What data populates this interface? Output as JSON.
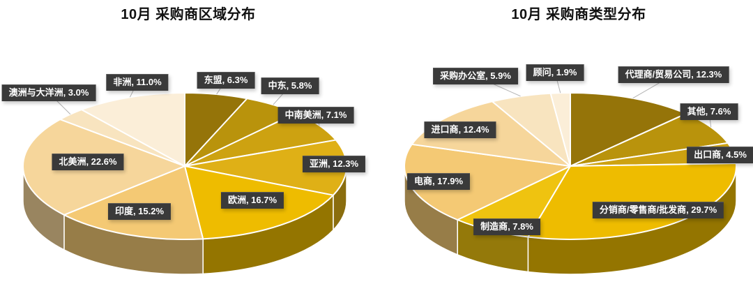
{
  "charts_header": {
    "left_title": "10月 采购商区域分布",
    "right_title": "10月 采购商类型分布"
  },
  "chart_data": [
    {
      "type": "pie",
      "title": "10月 采购商区域分布",
      "style": "3d-pie",
      "start_angle_deg": -90,
      "direction": "clockwise",
      "label_format": "{category}, {value}%",
      "categories": [
        "东盟",
        "中东",
        "中南美洲",
        "亚洲",
        "欧洲",
        "印度",
        "北美洲",
        "澳洲与大洋洲",
        "非洲"
      ],
      "values": [
        6.3,
        5.8,
        7.1,
        12.3,
        16.7,
        15.2,
        22.6,
        3.0,
        11.0
      ],
      "palette": [
        "#957409",
        "#B9930C",
        "#CDA211",
        "#DFB016",
        "#EEBC00",
        "#F4C974",
        "#F6D69B",
        "#F8E4BF",
        "#FBEED8"
      ]
    },
    {
      "type": "pie",
      "title": "10月 采购商类型分布",
      "style": "3d-pie",
      "start_angle_deg": -90,
      "direction": "clockwise",
      "label_format": "{category}, {value}%",
      "categories": [
        "代理商/贸易公司",
        "其他",
        "出口商",
        "分销商/零售商/批发商",
        "制造商",
        "电商",
        "进口商",
        "采购办公室",
        "顾问"
      ],
      "values": [
        12.3,
        7.6,
        4.5,
        29.7,
        7.8,
        17.9,
        12.4,
        5.9,
        1.9
      ],
      "palette": [
        "#957409",
        "#B9930C",
        "#CDA211",
        "#EEBC00",
        "#EFC310",
        "#F4C974",
        "#F6D69B",
        "#F8E4BF",
        "#FBEED8"
      ]
    }
  ],
  "style_colors": {
    "label_box_bg": "#3a3a3a",
    "label_text": "#ffffff",
    "leader_line": "#b3b3b3",
    "slice_separator": "#ffffff",
    "title_color": "#111111"
  }
}
